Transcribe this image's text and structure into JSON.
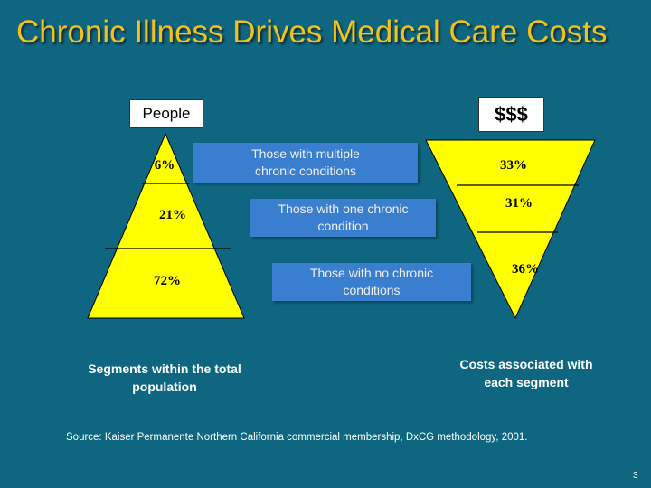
{
  "title": "Chronic Illness Drives Medical Care Costs",
  "people_label": "People",
  "costs_label": "$$$",
  "segments": [
    {
      "name": "Those with multiple chronic conditions",
      "people_pct": "6%",
      "cost_pct": "33%"
    },
    {
      "name": "Those with one chronic condition",
      "people_pct": "21%",
      "cost_pct": "31%"
    },
    {
      "name": "Those with no chronic conditions",
      "people_pct": "72%",
      "cost_pct": "36%"
    }
  ],
  "people_caption": "Segments within the total population",
  "costs_caption": "Costs associated with each segment",
  "source": "Source: Kaiser Permanente Northern California commercial membership, DxCG methodology, 2001.",
  "page_number": "3",
  "colors": {
    "background": "#0e6680",
    "title": "#f2c21b",
    "triangle_fill": "#ffff00",
    "segment_box": "#3a7ed0"
  }
}
